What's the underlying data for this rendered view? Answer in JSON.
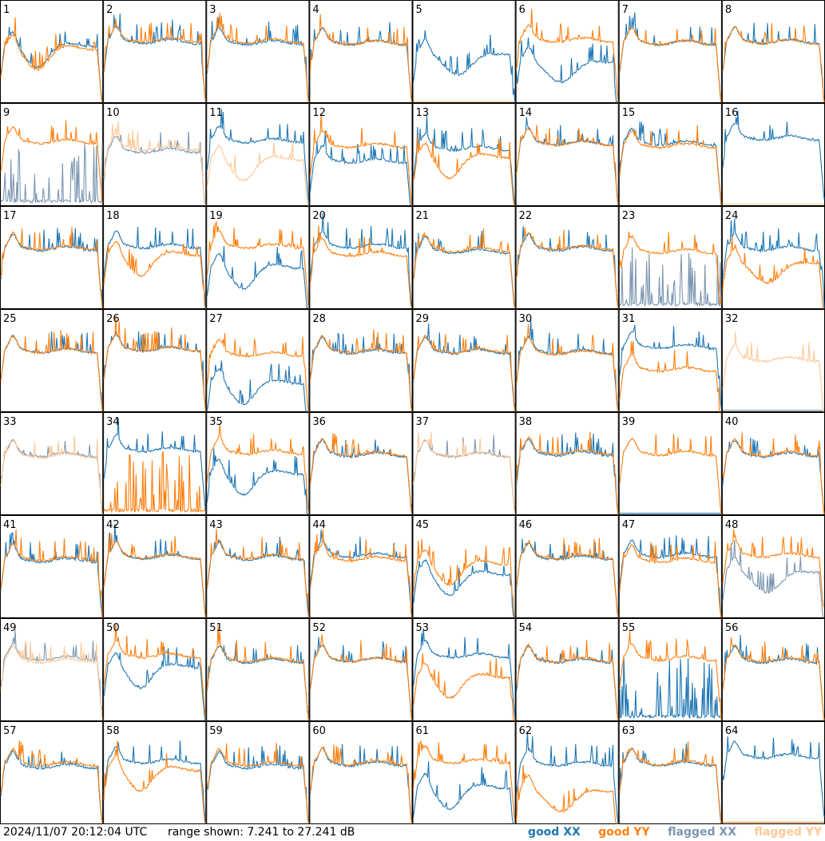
{
  "chart_data": {
    "type": "line",
    "grid_cols": 8,
    "grid_rows": 8,
    "panels": [
      {
        "label": "1",
        "xx": {
          "mean": 18.5,
          "shape": "dip_early",
          "flag": false
        },
        "yy": {
          "mean": 18.0,
          "shape": "dip_early",
          "flag": false
        }
      },
      {
        "label": "2",
        "xx": {
          "mean": 19.2,
          "shape": "flat",
          "flag": false
        },
        "yy": {
          "mean": 19.5,
          "shape": "flat",
          "flag": false
        }
      },
      {
        "label": "3",
        "xx": {
          "mean": 19.0,
          "shape": "flat",
          "flag": false
        },
        "yy": {
          "mean": 19.3,
          "shape": "flat",
          "flag": false
        }
      },
      {
        "label": "4",
        "xx": {
          "mean": 19.0,
          "shape": "flat",
          "flag": false
        },
        "yy": {
          "mean": 19.0,
          "shape": "flat",
          "flag": false
        }
      },
      {
        "label": "5",
        "xx": {
          "mean": 17.0,
          "shape": "dip_mid",
          "flag": false
        },
        "yy": {
          "mean": 7.6,
          "shape": "dead",
          "flag": true
        }
      },
      {
        "label": "6",
        "xx": {
          "mean": 15.5,
          "shape": "dip_mid",
          "flag": false
        },
        "yy": {
          "mean": 19.5,
          "shape": "flat",
          "flag": false
        }
      },
      {
        "label": "7",
        "xx": {
          "mean": 19.0,
          "shape": "flat",
          "flag": false
        },
        "yy": {
          "mean": 19.0,
          "shape": "flat",
          "flag": false
        }
      },
      {
        "label": "8",
        "xx": {
          "mean": 19.2,
          "shape": "flat",
          "flag": false
        },
        "yy": {
          "mean": 19.2,
          "shape": "flat",
          "flag": false
        }
      },
      {
        "label": "9",
        "xx": {
          "mean": 8.5,
          "shape": "spiky_low",
          "flag": true
        },
        "yy": {
          "mean": 19.8,
          "shape": "flat",
          "flag": false
        }
      },
      {
        "label": "10",
        "xx": {
          "mean": 18.0,
          "shape": "flat",
          "flag": true
        },
        "yy": {
          "mean": 18.5,
          "shape": "flat",
          "flag": true
        }
      },
      {
        "label": "11",
        "xx": {
          "mean": 20.0,
          "shape": "flat",
          "flag": false
        },
        "yy": {
          "mean": 16.5,
          "shape": "dip_early",
          "flag": true
        }
      },
      {
        "label": "12",
        "xx": {
          "mean": 16.0,
          "shape": "flat",
          "flag": false
        },
        "yy": {
          "mean": 19.0,
          "shape": "flat",
          "flag": false
        }
      },
      {
        "label": "13",
        "xx": {
          "mean": 18.5,
          "shape": "flat",
          "flag": false
        },
        "yy": {
          "mean": 17.0,
          "shape": "dip_early",
          "flag": false
        }
      },
      {
        "label": "14",
        "xx": {
          "mean": 19.5,
          "shape": "flat",
          "flag": false
        },
        "yy": {
          "mean": 19.5,
          "shape": "flat",
          "flag": false
        }
      },
      {
        "label": "15",
        "xx": {
          "mean": 19.5,
          "shape": "flat",
          "flag": false
        },
        "yy": {
          "mean": 19.0,
          "shape": "flat",
          "flag": false
        }
      },
      {
        "label": "16",
        "xx": {
          "mean": 20.5,
          "shape": "flat",
          "flag": false
        },
        "yy": {
          "mean": 7.5,
          "shape": "dead",
          "flag": true
        }
      },
      {
        "label": "17",
        "xx": {
          "mean": 19.0,
          "shape": "flat",
          "flag": false
        },
        "yy": {
          "mean": 19.2,
          "shape": "flat",
          "flag": false
        }
      },
      {
        "label": "18",
        "xx": {
          "mean": 19.5,
          "shape": "flat",
          "flag": false
        },
        "yy": {
          "mean": 18.0,
          "shape": "dip_early",
          "flag": false
        }
      },
      {
        "label": "19",
        "xx": {
          "mean": 15.5,
          "shape": "dip_early",
          "flag": false
        },
        "yy": {
          "mean": 19.5,
          "shape": "flat",
          "flag": false
        }
      },
      {
        "label": "20",
        "xx": {
          "mean": 19.5,
          "shape": "flat",
          "flag": false
        },
        "yy": {
          "mean": 18.0,
          "shape": "flat",
          "flag": false
        }
      },
      {
        "label": "21",
        "xx": {
          "mean": 18.5,
          "shape": "flat",
          "flag": false
        },
        "yy": {
          "mean": 18.8,
          "shape": "flat",
          "flag": false
        }
      },
      {
        "label": "22",
        "xx": {
          "mean": 19.0,
          "shape": "flat",
          "flag": false
        },
        "yy": {
          "mean": 19.2,
          "shape": "flat",
          "flag": false
        }
      },
      {
        "label": "23",
        "xx": {
          "mean": 9.0,
          "shape": "spiky_low",
          "flag": true
        },
        "yy": {
          "mean": 18.5,
          "shape": "flat",
          "flag": false
        }
      },
      {
        "label": "24",
        "xx": {
          "mean": 19.0,
          "shape": "flat",
          "flag": false
        },
        "yy": {
          "mean": 16.5,
          "shape": "dip_mid",
          "flag": false
        }
      },
      {
        "label": "25",
        "xx": {
          "mean": 19.2,
          "shape": "flat",
          "flag": false
        },
        "yy": {
          "mean": 19.2,
          "shape": "flat",
          "flag": false
        }
      },
      {
        "label": "26",
        "xx": {
          "mean": 19.5,
          "shape": "flat",
          "flag": false
        },
        "yy": {
          "mean": 19.5,
          "shape": "flat",
          "flag": false
        }
      },
      {
        "label": "27",
        "xx": {
          "mean": 13.0,
          "shape": "dip_early",
          "flag": false
        },
        "yy": {
          "mean": 18.5,
          "shape": "flat",
          "flag": false
        }
      },
      {
        "label": "28",
        "xx": {
          "mean": 19.0,
          "shape": "flat",
          "flag": false
        },
        "yy": {
          "mean": 19.2,
          "shape": "flat",
          "flag": false
        }
      },
      {
        "label": "29",
        "xx": {
          "mean": 19.0,
          "shape": "flat",
          "flag": false
        },
        "yy": {
          "mean": 19.2,
          "shape": "flat",
          "flag": false
        }
      },
      {
        "label": "30",
        "xx": {
          "mean": 19.0,
          "shape": "flat",
          "flag": false
        },
        "yy": {
          "mean": 18.8,
          "shape": "flat",
          "flag": false
        }
      },
      {
        "label": "31",
        "xx": {
          "mean": 20.0,
          "shape": "flat",
          "flag": false
        },
        "yy": {
          "mean": 15.5,
          "shape": "flat",
          "flag": false
        }
      },
      {
        "label": "32",
        "xx": {
          "mean": 7.4,
          "shape": "dead",
          "flag": true
        },
        "yy": {
          "mean": 17.5,
          "shape": "flat",
          "flag": true
        }
      },
      {
        "label": "33",
        "xx": {
          "mean": 19.0,
          "shape": "flat",
          "flag": true
        },
        "yy": {
          "mean": 18.8,
          "shape": "flat",
          "flag": true
        }
      },
      {
        "label": "34",
        "xx": {
          "mean": 20.0,
          "shape": "flat",
          "flag": false
        },
        "yy": {
          "mean": 8.5,
          "shape": "spiky_low",
          "flag": false
        }
      },
      {
        "label": "35",
        "xx": {
          "mean": 15.5,
          "shape": "dip_early",
          "flag": false
        },
        "yy": {
          "mean": 19.5,
          "shape": "flat",
          "flag": false
        }
      },
      {
        "label": "36",
        "xx": {
          "mean": 19.0,
          "shape": "flat",
          "flag": false
        },
        "yy": {
          "mean": 19.2,
          "shape": "flat",
          "flag": false
        }
      },
      {
        "label": "37",
        "xx": {
          "mean": 19.0,
          "shape": "flat",
          "flag": true
        },
        "yy": {
          "mean": 19.0,
          "shape": "flat",
          "flag": true
        }
      },
      {
        "label": "38",
        "xx": {
          "mean": 19.2,
          "shape": "flat",
          "flag": false
        },
        "yy": {
          "mean": 19.5,
          "shape": "flat",
          "flag": false
        }
      },
      {
        "label": "39",
        "xx": {
          "mean": 7.3,
          "shape": "dead",
          "flag": false
        },
        "yy": {
          "mean": 19.3,
          "shape": "flat",
          "flag": false
        }
      },
      {
        "label": "40",
        "xx": {
          "mean": 19.0,
          "shape": "flat",
          "flag": false
        },
        "yy": {
          "mean": 19.2,
          "shape": "flat",
          "flag": false
        }
      },
      {
        "label": "41",
        "xx": {
          "mean": 18.5,
          "shape": "flat",
          "flag": false
        },
        "yy": {
          "mean": 18.8,
          "shape": "flat",
          "flag": false
        }
      },
      {
        "label": "42",
        "xx": {
          "mean": 19.2,
          "shape": "flat",
          "flag": false
        },
        "yy": {
          "mean": 19.3,
          "shape": "flat",
          "flag": false
        }
      },
      {
        "label": "43",
        "xx": {
          "mean": 19.0,
          "shape": "flat",
          "flag": false
        },
        "yy": {
          "mean": 19.2,
          "shape": "flat",
          "flag": false
        }
      },
      {
        "label": "44",
        "xx": {
          "mean": 19.5,
          "shape": "flat",
          "flag": false
        },
        "yy": {
          "mean": 18.8,
          "shape": "flat",
          "flag": false
        }
      },
      {
        "label": "45",
        "xx": {
          "mean": 16.0,
          "shape": "dip_early",
          "flag": false
        },
        "yy": {
          "mean": 18.0,
          "shape": "dip_early",
          "flag": false
        }
      },
      {
        "label": "46",
        "xx": {
          "mean": 19.0,
          "shape": "flat",
          "flag": false
        },
        "yy": {
          "mean": 19.2,
          "shape": "flat",
          "flag": false
        }
      },
      {
        "label": "47",
        "xx": {
          "mean": 19.5,
          "shape": "flat",
          "flag": false
        },
        "yy": {
          "mean": 18.5,
          "shape": "flat",
          "flag": false
        }
      },
      {
        "label": "48",
        "xx": {
          "mean": 16.5,
          "shape": "dip_mid",
          "flag": true
        },
        "yy": {
          "mean": 19.5,
          "shape": "flat",
          "flag": false
        }
      },
      {
        "label": "49",
        "xx": {
          "mean": 19.5,
          "shape": "flat",
          "flag": true
        },
        "yy": {
          "mean": 19.0,
          "shape": "flat",
          "flag": true
        }
      },
      {
        "label": "50",
        "xx": {
          "mean": 18.0,
          "shape": "dip_early",
          "flag": false
        },
        "yy": {
          "mean": 20.0,
          "shape": "flat",
          "flag": false
        }
      },
      {
        "label": "51",
        "xx": {
          "mean": 19.0,
          "shape": "flat",
          "flag": false
        },
        "yy": {
          "mean": 19.2,
          "shape": "flat",
          "flag": false
        }
      },
      {
        "label": "52",
        "xx": {
          "mean": 19.2,
          "shape": "flat",
          "flag": false
        },
        "yy": {
          "mean": 19.2,
          "shape": "flat",
          "flag": false
        }
      },
      {
        "label": "53",
        "xx": {
          "mean": 20.0,
          "shape": "flat",
          "flag": false
        },
        "yy": {
          "mean": 16.0,
          "shape": "dip_early",
          "flag": false
        }
      },
      {
        "label": "54",
        "xx": {
          "mean": 19.0,
          "shape": "flat",
          "flag": false
        },
        "yy": {
          "mean": 19.2,
          "shape": "flat",
          "flag": false
        }
      },
      {
        "label": "55",
        "xx": {
          "mean": 9.0,
          "shape": "spiky_low",
          "flag": false
        },
        "yy": {
          "mean": 19.5,
          "shape": "flat",
          "flag": false
        }
      },
      {
        "label": "56",
        "xx": {
          "mean": 19.0,
          "shape": "flat",
          "flag": false
        },
        "yy": {
          "mean": 19.2,
          "shape": "flat",
          "flag": false
        }
      },
      {
        "label": "57",
        "xx": {
          "mean": 18.5,
          "shape": "flat",
          "flag": false
        },
        "yy": {
          "mean": 19.0,
          "shape": "flat",
          "flag": false
        }
      },
      {
        "label": "58",
        "xx": {
          "mean": 19.5,
          "shape": "flat",
          "flag": false
        },
        "yy": {
          "mean": 18.0,
          "shape": "dip_early",
          "flag": false
        }
      },
      {
        "label": "59",
        "xx": {
          "mean": 18.5,
          "shape": "flat",
          "flag": false
        },
        "yy": {
          "mean": 19.0,
          "shape": "flat",
          "flag": false
        }
      },
      {
        "label": "60",
        "xx": {
          "mean": 19.0,
          "shape": "flat",
          "flag": false
        },
        "yy": {
          "mean": 19.2,
          "shape": "flat",
          "flag": false
        }
      },
      {
        "label": "61",
        "xx": {
          "mean": 14.5,
          "shape": "dip_early",
          "flag": false
        },
        "yy": {
          "mean": 19.5,
          "shape": "flat",
          "flag": false
        }
      },
      {
        "label": "62",
        "xx": {
          "mean": 19.0,
          "shape": "flat",
          "flag": false
        },
        "yy": {
          "mean": 14.0,
          "shape": "dip_mid",
          "flag": false
        }
      },
      {
        "label": "63",
        "xx": {
          "mean": 19.0,
          "shape": "flat",
          "flag": false
        },
        "yy": {
          "mean": 19.2,
          "shape": "flat",
          "flag": false
        }
      },
      {
        "label": "64",
        "xx": {
          "mean": 20.5,
          "shape": "flat",
          "flag": false
        },
        "yy": {
          "mean": 7.5,
          "shape": "dead",
          "flag": false
        }
      }
    ],
    "y_range_db": [
      7.241,
      27.241
    ],
    "grid": false,
    "legend_position": "bottom-right",
    "series": [
      {
        "name": "good XX",
        "color": "#1f77b4"
      },
      {
        "name": "good YY",
        "color": "#ff7f0e"
      },
      {
        "name": "flagged XX",
        "color": "#7c96b0"
      },
      {
        "name": "flagged YY",
        "color": "#ffc896"
      }
    ]
  },
  "footer": {
    "timestamp": "2024/11/07 20:12:04 UTC",
    "range_text": "range shown: 7.241 to 27.241 dB"
  }
}
